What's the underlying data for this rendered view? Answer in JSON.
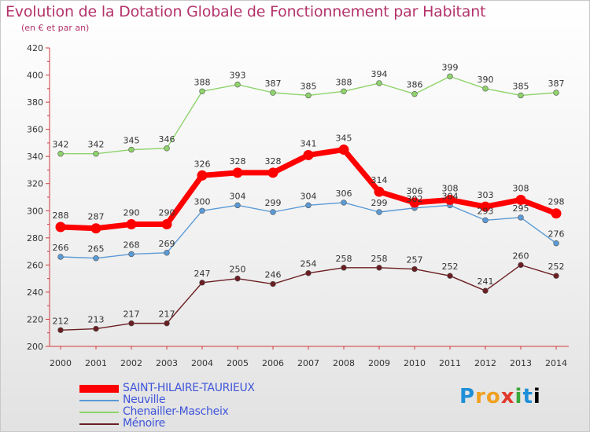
{
  "title": "Evolution de la Dotation Globale de Fonctionnement par Habitant",
  "subtitle": "(en € et par an)",
  "logo": "Proxiti",
  "chart_data": {
    "type": "line",
    "title": "Evolution de la Dotation Globale de Fonctionnement par Habitant",
    "ylabel": "(en € et par an)",
    "xlabel": "",
    "x": [
      "2000",
      "2001",
      "2002",
      "2003",
      "2004",
      "2005",
      "2006",
      "2007",
      "2008",
      "2009",
      "2010",
      "2011",
      "2012",
      "2013",
      "2014"
    ],
    "ylim": [
      200,
      420
    ],
    "yticks": [
      200,
      220,
      240,
      260,
      280,
      300,
      320,
      340,
      360,
      380,
      400,
      420
    ],
    "grid": false,
    "legend_position": "bottom-left",
    "series": [
      {
        "name": "SAINT-HILAIRE-TAURIEUX",
        "color": "#ff0000",
        "emphasis": true,
        "values": [
          288,
          287,
          290,
          290,
          326,
          328,
          328,
          341,
          345,
          314,
          306,
          308,
          303,
          308,
          298
        ]
      },
      {
        "name": "Neuville",
        "color": "#5a9ad6",
        "emphasis": false,
        "values": [
          266,
          265,
          268,
          269,
          300,
          304,
          299,
          304,
          306,
          299,
          302,
          304,
          293,
          295,
          276
        ]
      },
      {
        "name": "Chenailler-Mascheix",
        "color": "#8ed36b",
        "emphasis": false,
        "values": [
          342,
          342,
          345,
          346,
          388,
          393,
          387,
          385,
          388,
          394,
          386,
          399,
          390,
          385,
          387
        ]
      },
      {
        "name": "Ménoire",
        "color": "#6b1e22",
        "emphasis": false,
        "values": [
          212,
          213,
          217,
          217,
          247,
          250,
          246,
          254,
          258,
          258,
          257,
          252,
          241,
          260,
          252
        ]
      }
    ]
  }
}
